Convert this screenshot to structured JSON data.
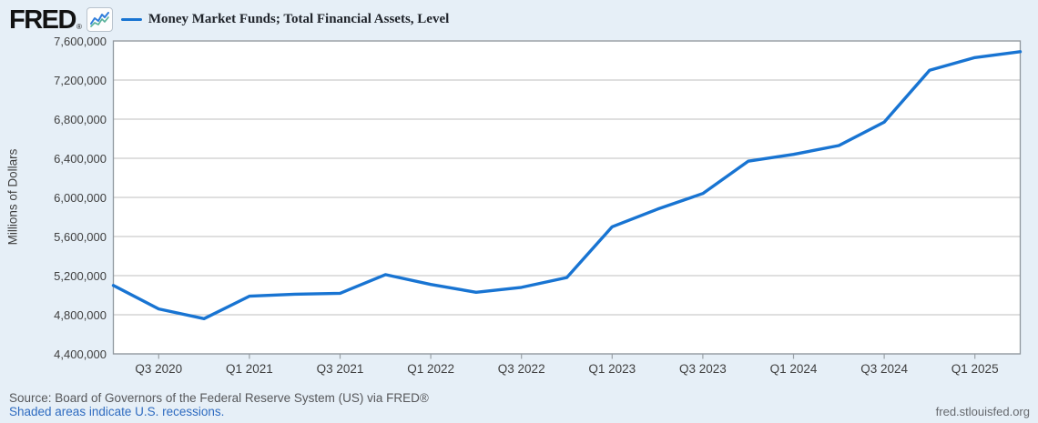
{
  "header": {
    "logo_text": "FRED",
    "logo_registered_mark": "®",
    "badge_icon": "line-chart-sparkline-icon"
  },
  "legend": {
    "label": "Money Market Funds; Total Financial Assets, Level",
    "swatch_color": "#1874d2"
  },
  "chart_data": {
    "type": "line",
    "title": "Money Market Funds; Total Financial Assets, Level",
    "xlabel": "",
    "ylabel": "Millions of Dollars",
    "ylim": [
      4400000,
      7600000
    ],
    "grid": true,
    "legend_position": "top-left",
    "line_color": "#1874d2",
    "x": [
      "Q2 2020",
      "Q3 2020",
      "Q4 2020",
      "Q1 2021",
      "Q2 2021",
      "Q3 2021",
      "Q4 2021",
      "Q1 2022",
      "Q2 2022",
      "Q3 2022",
      "Q4 2022",
      "Q1 2023",
      "Q2 2023",
      "Q3 2023",
      "Q4 2023",
      "Q1 2024",
      "Q2 2024",
      "Q3 2024",
      "Q4 2024",
      "Q1 2025",
      "Q2 2025"
    ],
    "values": [
      5100000,
      4860000,
      4760000,
      4990000,
      5010000,
      5020000,
      5210000,
      5110000,
      5030000,
      5080000,
      5180000,
      5700000,
      5880000,
      6040000,
      6370000,
      6440000,
      6530000,
      6770000,
      7300000,
      7430000,
      7490000
    ],
    "y_tick_labels": [
      "7,600,000",
      "7,200,000",
      "6,800,000",
      "6,400,000",
      "6,000,000",
      "5,600,000",
      "5,200,000",
      "4,800,000",
      "4,400,000"
    ],
    "x_tick_labels": [
      "Q3 2020",
      "Q1 2021",
      "Q3 2021",
      "Q1 2022",
      "Q3 2022",
      "Q1 2023",
      "Q3 2023",
      "Q1 2024",
      "Q3 2024",
      "Q1 2025"
    ]
  },
  "footer": {
    "source": "Source: Board of Governors of the Federal Reserve System (US) via FRED®",
    "recession_note": "Shaded areas indicate U.S. recessions.",
    "watermark": "fred.stlouisfed.org"
  }
}
